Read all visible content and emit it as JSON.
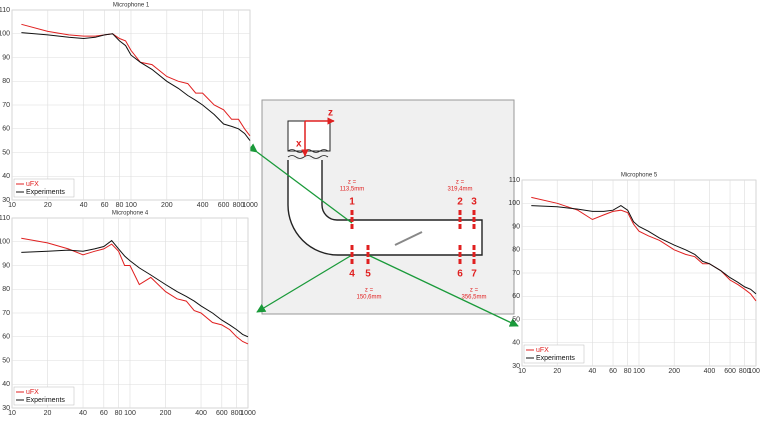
{
  "chart_data": [
    {
      "type": "line",
      "title": "Microphone 1",
      "log_x": true,
      "grid": true,
      "legend": "lower left",
      "x": [
        12,
        20,
        30,
        40,
        50,
        60,
        70,
        80,
        90,
        100,
        120,
        150,
        200,
        250,
        300,
        350,
        400,
        500,
        600,
        700,
        800,
        900,
        1000
      ],
      "series": [
        {
          "name": "uFX",
          "color": "#e02020",
          "values": [
            104,
            101,
            99.5,
            99,
            99,
            99.5,
            100,
            98,
            97,
            93,
            88,
            87,
            82,
            80,
            79,
            75,
            75,
            70,
            68,
            64,
            64,
            60,
            57
          ]
        },
        {
          "name": "Experiments",
          "color": "#111111",
          "values": [
            100.5,
            99.5,
            98.5,
            98,
            98.5,
            99.5,
            100,
            97,
            95,
            91,
            88,
            85,
            80,
            77,
            74,
            72,
            70,
            66,
            62,
            61,
            60,
            58,
            55
          ]
        }
      ],
      "xlim": [
        10,
        1000
      ],
      "xticks": [
        10,
        20,
        40,
        60,
        80,
        100,
        200,
        400,
        600,
        800,
        1000
      ],
      "ylim": [
        30,
        110
      ],
      "yticks": [
        30,
        40,
        50,
        60,
        70,
        80,
        90,
        100,
        110
      ]
    },
    {
      "type": "line",
      "title": "Microphone 4",
      "log_x": true,
      "grid": true,
      "legend": "lower left",
      "x": [
        12,
        20,
        30,
        40,
        50,
        60,
        70,
        80,
        90,
        100,
        120,
        150,
        200,
        250,
        300,
        350,
        400,
        500,
        600,
        700,
        800,
        900,
        1000
      ],
      "series": [
        {
          "name": "uFX",
          "color": "#e02020",
          "values": [
            101.5,
            99.5,
            97,
            94.5,
            96,
            97,
            99,
            96,
            90,
            90,
            82,
            85,
            79,
            76,
            75,
            71,
            70,
            66,
            65,
            63,
            60,
            58,
            57
          ]
        },
        {
          "name": "Experiments",
          "color": "#111111",
          "values": [
            95.5,
            96,
            96.5,
            96,
            97,
            98,
            100.5,
            97,
            94,
            92,
            89,
            86,
            82,
            79,
            77,
            75,
            73,
            70,
            67,
            65,
            63,
            61,
            60
          ]
        }
      ],
      "xlim": [
        10,
        1000
      ],
      "xticks": [
        10,
        20,
        40,
        60,
        80,
        100,
        200,
        400,
        600,
        800,
        1000
      ],
      "ylim": [
        30,
        110
      ],
      "yticks": [
        30,
        40,
        50,
        60,
        70,
        80,
        90,
        100,
        110
      ]
    },
    {
      "type": "line",
      "title": "Microphone 5",
      "log_x": true,
      "grid": true,
      "legend": "lower left",
      "x": [
        12,
        20,
        30,
        40,
        50,
        60,
        70,
        80,
        90,
        100,
        120,
        150,
        200,
        250,
        300,
        350,
        400,
        500,
        600,
        700,
        800,
        900,
        1000
      ],
      "series": [
        {
          "name": "uFX",
          "color": "#e02020",
          "values": [
            102.5,
            100,
            97,
            93,
            95,
            96.5,
            97,
            96,
            91,
            88,
            86,
            84,
            80,
            78,
            77,
            74,
            74,
            71,
            67,
            65,
            63,
            61,
            58
          ]
        },
        {
          "name": "Experiments",
          "color": "#111111",
          "values": [
            99,
            98.5,
            97.5,
            96.5,
            96.5,
            97,
            99,
            97,
            92,
            90,
            88,
            85,
            82,
            80,
            78,
            75,
            74,
            71,
            68,
            66,
            64,
            63,
            61
          ]
        }
      ],
      "xlim": [
        10,
        1000
      ],
      "xticks": [
        10,
        20,
        40,
        60,
        80,
        100,
        200,
        400,
        600,
        800,
        1000
      ],
      "ylim": [
        30,
        110
      ],
      "yticks": [
        30,
        40,
        50,
        60,
        70,
        80,
        90,
        100,
        110
      ]
    }
  ],
  "diagram": {
    "axis_z": "z",
    "axis_x": "x",
    "microphones": [
      "1",
      "2",
      "3",
      "4",
      "5",
      "6",
      "7"
    ],
    "dimensions": [
      [
        "z =",
        "113,5mm"
      ],
      [
        "z =",
        "319,4mm"
      ],
      [
        "z =",
        "150,6mm"
      ],
      [
        "z =",
        "356,5mm"
      ]
    ]
  }
}
